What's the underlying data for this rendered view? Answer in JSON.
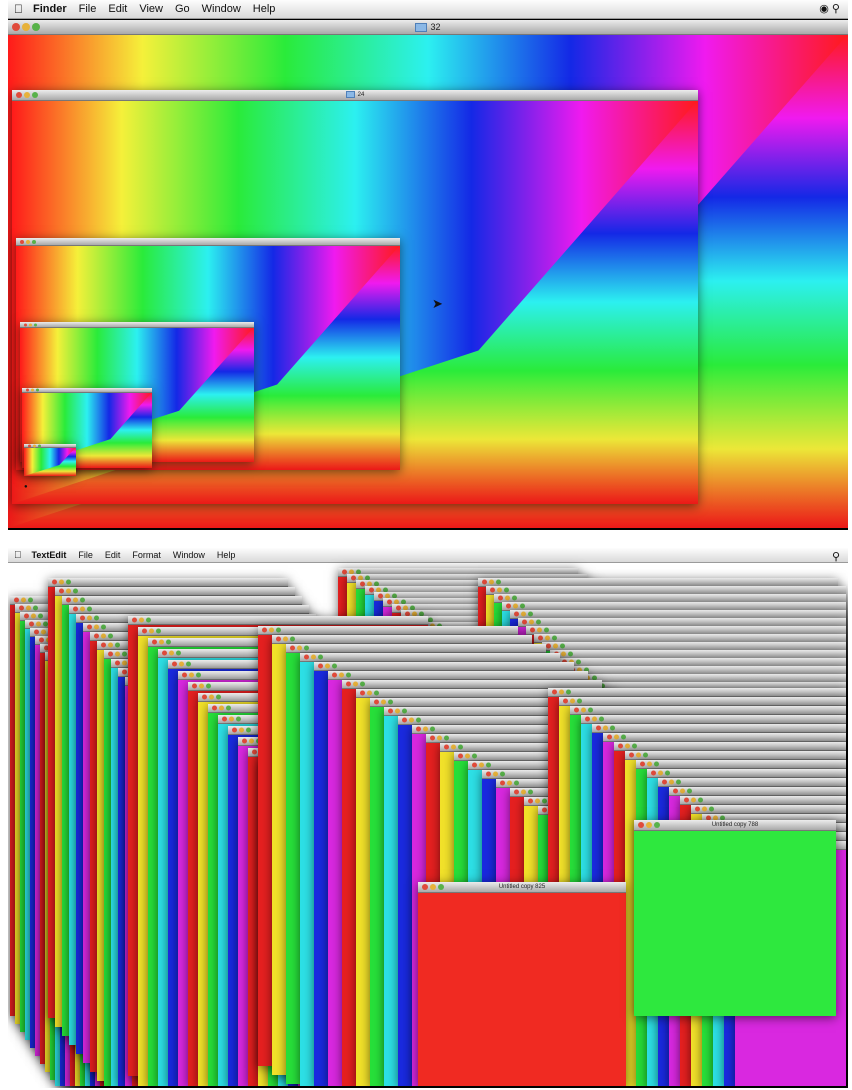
{
  "finder_panel": {
    "menu": [
      "Finder",
      "File",
      "Edit",
      "View",
      "Go",
      "Window",
      "Help"
    ],
    "windows": [
      {
        "name": "window-32",
        "title": "32"
      },
      {
        "name": "window-24",
        "title": "24"
      },
      {
        "name": "window-16",
        "title": ""
      },
      {
        "name": "window-8",
        "title": ""
      },
      {
        "name": "window-4",
        "title": ""
      },
      {
        "name": "window-2",
        "title": ""
      }
    ]
  },
  "textedit_panel": {
    "menu": [
      "TextEdit",
      "File",
      "Edit",
      "Format",
      "Window",
      "Help"
    ],
    "stack_colors": [
      "#e62020",
      "#f2e22a",
      "#27e03a",
      "#2de0e6",
      "#1a2ae0",
      "#d928e0"
    ],
    "front_windows": [
      {
        "name": "front-window-red",
        "title": "Untitled copy 825",
        "color": "#f02a22"
      },
      {
        "name": "front-window-green",
        "title": "Untitled copy 788",
        "color": "#2ee83e"
      }
    ]
  },
  "colors": {
    "red": "#ff1a1a",
    "yellow": "#f5f03a",
    "green": "#2aeb3a",
    "cyan": "#2cf0f0",
    "blue": "#1428e6",
    "magenta": "#f01aef"
  }
}
